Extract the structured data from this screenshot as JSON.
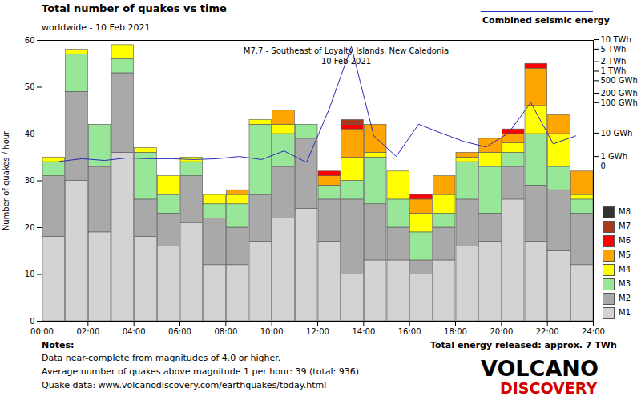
{
  "chart_data": {
    "type": "bar",
    "title": "Total number of quakes vs time",
    "subtitle": "worldwide - 10 Feb 2021",
    "ylabel": "Number of quakes / hour",
    "annotations": [
      "M7.7 - Southeast of Loyalty Islands, New Caledonia",
      "10 Feb 2021"
    ],
    "stacked": true,
    "grid": false,
    "legend": "lower right",
    "x": [
      0,
      1,
      2,
      3,
      4,
      5,
      6,
      7,
      8,
      9,
      10,
      11,
      12,
      13,
      14,
      15,
      16,
      17,
      18,
      19,
      20,
      21,
      22,
      23
    ],
    "xlim": [
      0,
      24
    ],
    "xticks": [
      {
        "value": 0,
        "label": "00:00"
      },
      {
        "value": 2,
        "label": "02:00"
      },
      {
        "value": 4,
        "label": "04:00"
      },
      {
        "value": 6,
        "label": "06:00"
      },
      {
        "value": 8,
        "label": "08:00"
      },
      {
        "value": 10,
        "label": "10:00"
      },
      {
        "value": 12,
        "label": "12:00"
      },
      {
        "value": 14,
        "label": "14:00"
      },
      {
        "value": 16,
        "label": "16:00"
      },
      {
        "value": 18,
        "label": "18:00"
      },
      {
        "value": 20,
        "label": "20:00"
      },
      {
        "value": 22,
        "label": "22:00"
      },
      {
        "value": 24,
        "label": "24:00"
      }
    ],
    "ylim": [
      0,
      60
    ],
    "yticks": [
      0,
      10,
      20,
      30,
      40,
      50,
      60
    ],
    "y2lim": [
      0,
      10000
    ],
    "y2ticks": [
      0,
      {
        "value": 1,
        "label": "1 GWh"
      },
      {
        "value": 10,
        "label": "10 GWh"
      },
      {
        "value": 100,
        "label": "100 GWh"
      },
      {
        "value": 200,
        "label": "200 GWh"
      },
      {
        "value": 500,
        "label": "500 GWh"
      },
      {
        "value": 1000,
        "label": "1 TWh"
      },
      {
        "value": 2000,
        "label": "2 TWh"
      },
      {
        "value": 5000,
        "label": "5 TWh"
      },
      {
        "value": 10000,
        "label": "10 TWh"
      }
    ],
    "series": [
      {
        "name": "M1",
        "color": "#d3d3d3",
        "type": "bar",
        "values": [
          18,
          30,
          19,
          36,
          18,
          16,
          21,
          12,
          12,
          17,
          22,
          24,
          17,
          10,
          13,
          13,
          10,
          13,
          16,
          17,
          26,
          17,
          15,
          12
        ]
      },
      {
        "name": "M2",
        "color": "#a9a9a9",
        "type": "bar",
        "values": [
          13,
          19,
          14,
          17,
          8,
          7,
          10,
          10,
          8,
          10,
          11,
          15,
          9,
          16,
          12,
          7,
          3,
          7,
          10,
          6,
          7,
          12,
          13,
          11
        ]
      },
      {
        "name": "M3",
        "color": "#98e698",
        "type": "bar",
        "values": [
          3,
          8,
          9,
          3,
          10,
          4,
          3,
          3,
          5,
          15,
          7,
          3,
          3,
          4,
          10,
          6,
          6,
          3,
          8,
          10,
          3,
          11,
          5,
          3
        ]
      },
      {
        "name": "M4",
        "color": "#ffff00",
        "type": "bar",
        "values": [
          1,
          1,
          0,
          3,
          1,
          4,
          1,
          2,
          2,
          1,
          2,
          0,
          0,
          5,
          1,
          6,
          4,
          4,
          1,
          3,
          2,
          6,
          7,
          1
        ]
      },
      {
        "name": "M5",
        "color": "#ffa500",
        "type": "bar",
        "values": [
          0,
          0,
          0,
          0,
          0,
          0,
          0,
          0,
          1,
          0,
          3,
          0,
          2,
          6,
          6,
          0,
          3,
          4,
          1,
          3,
          2,
          8,
          4,
          5
        ]
      },
      {
        "name": "M6",
        "color": "#ff0000",
        "type": "bar",
        "values": [
          0,
          0,
          0,
          0,
          0,
          0,
          0,
          0,
          0,
          0,
          0,
          0,
          1,
          1,
          0,
          0,
          1,
          0,
          0,
          0,
          1,
          1,
          0,
          0
        ]
      },
      {
        "name": "M7",
        "color": "#a83a1e",
        "type": "bar",
        "values": [
          0,
          0,
          0,
          0,
          0,
          0,
          0,
          0,
          0,
          0,
          0,
          0,
          0,
          1,
          0,
          0,
          0,
          0,
          0,
          0,
          0,
          0,
          0,
          0
        ]
      },
      {
        "name": "M8",
        "color": "#333333",
        "type": "bar",
        "values": [
          0,
          0,
          0,
          0,
          0,
          0,
          0,
          0,
          0,
          0,
          0,
          0,
          0,
          0,
          0,
          0,
          0,
          0,
          0,
          0,
          0,
          0,
          0,
          0
        ]
      },
      {
        "name": "Combined seismic energy",
        "color": "#2a2ab8",
        "type": "line",
        "axis": "y2",
        "values": [
          0.4,
          0.7,
          0.5,
          0.8,
          0.7,
          0.7,
          0.6,
          0.7,
          1,
          0.6,
          2,
          0.3,
          60,
          6000,
          8,
          1,
          20,
          10,
          5,
          3,
          10,
          100,
          4,
          8
        ]
      }
    ],
    "notes_title": "Notes:",
    "notes": [
      "Data near-complete from magnitudes of 4.0 or higher.",
      "Average number of quakes above magnitude 1 per hour: 39 (total: 936)",
      "Quake data: www.volcanodiscovery.com/earthquakes/today.html"
    ],
    "energy_total": "Total energy released: approx. 7 TWh",
    "logo": [
      "VOLCANO",
      "DISCOVERY"
    ]
  }
}
